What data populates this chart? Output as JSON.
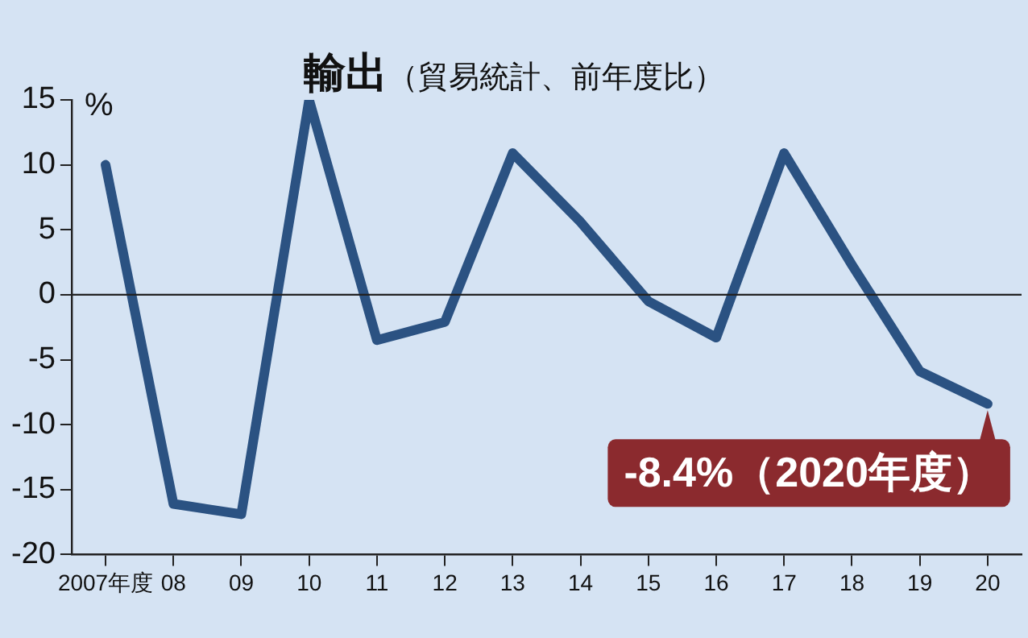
{
  "chart_data": {
    "type": "line",
    "title": "輸出",
    "subtitle": "（貿易統計、前年度比）",
    "ylabel": "%",
    "categories": [
      "2007年度",
      "08",
      "09",
      "10",
      "11",
      "12",
      "13",
      "14",
      "15",
      "16",
      "17",
      "18",
      "19",
      "20"
    ],
    "series": [
      {
        "color": "#2b5282",
        "values": [
          10,
          -16.1,
          -16.9,
          15,
          -3.5,
          -2.1,
          10.9,
          5.6,
          -0.5,
          -3.3,
          10.9,
          2.3,
          -5.9,
          -8.4
        ]
      }
    ],
    "ylim": [
      -20,
      15
    ],
    "yticks": [
      -20,
      -15,
      -10,
      -5,
      0,
      5,
      10,
      15
    ],
    "grid": false,
    "legend": false,
    "marker": "none",
    "line_style": "solid",
    "ref_lines": [
      {
        "axis": "y",
        "value": 0,
        "color": "#222222"
      }
    ],
    "annotations": [
      {
        "text": "-8.4%（2020年度）",
        "x": "20",
        "y": -8.4
      }
    ]
  }
}
